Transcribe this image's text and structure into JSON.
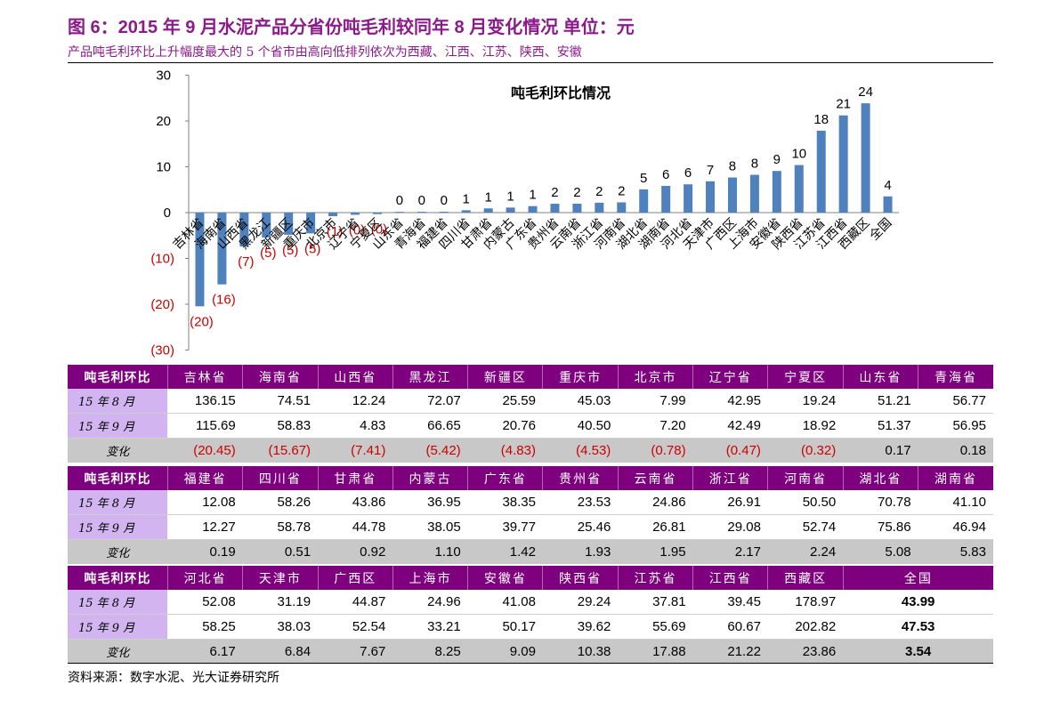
{
  "header": {
    "title": "图 6：2015 年 9 月水泥产品分省份吨毛利较同年 8 月变化情况 单位：元",
    "subtitle": "产品吨毛利环比上升幅度最大的 5 个省市由高向低排列依次为西藏、江西、江苏、陕西、安徽"
  },
  "colors": {
    "bar": "#4F81BD",
    "negative_text": "#CC0000",
    "header_bg": "#7E007E",
    "row_label_bg": "#D2B4F0",
    "change_row_bg": "#C8C8C8",
    "title": "#8B1A8B"
  },
  "chart_data": {
    "type": "bar",
    "title": "吨毛利环比情况",
    "categories": [
      "吉林省",
      "海南省",
      "山西省",
      "黑龙江",
      "新疆区",
      "重庆市",
      "北京市",
      "辽宁省",
      "宁夏区",
      "山东省",
      "青海省",
      "福建省",
      "四川省",
      "甘肃省",
      "内蒙古",
      "广东省",
      "贵州省",
      "云南省",
      "浙江省",
      "河南省",
      "湖北省",
      "湖南省",
      "河北省",
      "天津市",
      "广西区",
      "上海市",
      "安徽省",
      "陕西省",
      "江苏省",
      "江西省",
      "西藏区",
      "全国"
    ],
    "values": [
      -20.45,
      -15.67,
      -7.41,
      -5.42,
      -4.83,
      -4.53,
      -0.78,
      -0.47,
      -0.32,
      0.17,
      0.18,
      0.19,
      0.51,
      0.92,
      1.1,
      1.42,
      1.93,
      1.95,
      2.17,
      2.24,
      5.08,
      5.83,
      6.17,
      6.84,
      7.67,
      8.25,
      9.09,
      10.38,
      17.88,
      21.22,
      23.86,
      3.54
    ],
    "data_labels": [
      "(20)",
      "(16)",
      "(7)",
      "(5)",
      "(5)",
      "(5)",
      "(1)",
      "(0)",
      "(0)",
      "0",
      "0",
      "0",
      "1",
      "1",
      "1",
      "1",
      "2",
      "2",
      "2",
      "2",
      "5",
      "6",
      "6",
      "7",
      "8",
      "8",
      "9",
      "10",
      "18",
      "21",
      "24",
      "4"
    ],
    "yticks": [
      "30",
      "20",
      "10",
      "0",
      "(10)",
      "(20)",
      "(30)"
    ],
    "ylim": [
      -30,
      30
    ],
    "legend": "none",
    "grid": false
  },
  "table": {
    "header_label": "吨毛利环比",
    "row_labels": {
      "aug": "15 年 8 月",
      "sep": "15 年 9 月",
      "change": "变化"
    },
    "blocks": [
      {
        "provinces": [
          "吉林省",
          "海南省",
          "山西省",
          "黑龙江",
          "新疆区",
          "重庆市",
          "北京市",
          "辽宁省",
          "宁夏区",
          "山东省",
          "青海省"
        ],
        "aug": [
          "136.15",
          "74.51",
          "12.24",
          "72.07",
          "25.59",
          "45.03",
          "7.99",
          "42.95",
          "19.24",
          "51.21",
          "56.77"
        ],
        "sep": [
          "115.69",
          "58.83",
          "4.83",
          "66.65",
          "20.76",
          "40.50",
          "7.20",
          "42.49",
          "18.92",
          "51.37",
          "56.95"
        ],
        "change": [
          "(20.45)",
          "(15.67)",
          "(7.41)",
          "(5.42)",
          "(4.83)",
          "(4.53)",
          "(0.78)",
          "(0.47)",
          "(0.32)",
          "0.17",
          "0.18"
        ]
      },
      {
        "provinces": [
          "福建省",
          "四川省",
          "甘肃省",
          "内蒙古",
          "广东省",
          "贵州省",
          "云南省",
          "浙江省",
          "河南省",
          "湖北省",
          "湖南省"
        ],
        "aug": [
          "12.08",
          "58.26",
          "43.86",
          "36.95",
          "38.35",
          "23.53",
          "24.86",
          "26.91",
          "50.50",
          "70.78",
          "41.10"
        ],
        "sep": [
          "12.27",
          "58.78",
          "44.78",
          "38.05",
          "39.77",
          "25.46",
          "26.81",
          "29.08",
          "52.74",
          "75.86",
          "46.94"
        ],
        "change": [
          "0.19",
          "0.51",
          "0.92",
          "1.10",
          "1.42",
          "1.93",
          "1.95",
          "2.17",
          "2.24",
          "5.08",
          "5.83"
        ]
      },
      {
        "provinces": [
          "河北省",
          "天津市",
          "广西区",
          "上海市",
          "安徽省",
          "陕西省",
          "江苏省",
          "江西省",
          "西藏区",
          "全国"
        ],
        "aug": [
          "52.08",
          "31.19",
          "44.87",
          "24.96",
          "41.08",
          "29.24",
          "37.81",
          "39.45",
          "178.97",
          "43.99"
        ],
        "sep": [
          "58.25",
          "38.03",
          "52.54",
          "33.21",
          "50.17",
          "39.62",
          "55.69",
          "60.67",
          "202.82",
          "47.53"
        ],
        "change": [
          "6.17",
          "6.84",
          "7.67",
          "8.25",
          "9.09",
          "10.38",
          "17.88",
          "21.22",
          "23.86",
          "3.54"
        ]
      }
    ]
  },
  "footer": {
    "source": "资料来源：数字水泥、光大证券研究所"
  }
}
